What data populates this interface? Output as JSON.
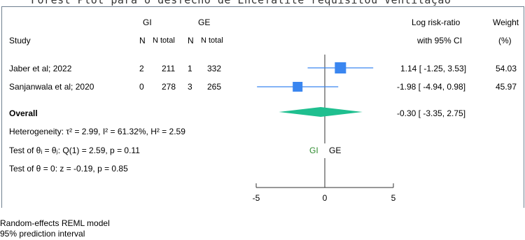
{
  "caption": "Forest Plot para o desfecho de Encefalite requisitou Ventilação",
  "header": {
    "study": "Study",
    "group1": "GI",
    "group2": "GE",
    "n1": "N",
    "ntotal1": "N total",
    "n2": "N",
    "ntotal2": "N total",
    "effect_line1": "Log risk-ratio",
    "effect_line2": "with 95% CI",
    "weight_line1": "Weight",
    "weight_line2": "(%)"
  },
  "studies": [
    {
      "name": "Jaber et al; 2022",
      "n1": "2",
      "ntot1": "211",
      "n2": "1",
      "ntot2": "332",
      "ci_text": "1.14 [ -1.25,  3.53]",
      "weight": "54.03"
    },
    {
      "name": "Sanjanwala et al; 2020",
      "n1": "0",
      "ntot1": "278",
      "n2": "3",
      "ntot2": "265",
      "ci_text": "-1.98 [ -4.94,  0.98]",
      "weight": "45.97"
    }
  ],
  "overall": {
    "label": "Overall",
    "ci_text": "-0.30 [ -3.35,  2.75]"
  },
  "stats": {
    "heterogeneity": "Heterogeneity: τ² = 2.99, I² = 61.32%, H² = 2.59",
    "theta_test": "Test of θᵢ = θⱼ: Q(1) = 2.59, p = 0.11",
    "zero_test": "Test of θ = 0: z = -0.19, p = 0.85"
  },
  "footer": {
    "model": "Random-effects REML model",
    "pi": "95% prediction interval"
  },
  "favors": {
    "left": "GI",
    "right": "GE"
  },
  "colors": {
    "study": "#3a86f0",
    "overall": "#1fbf8f",
    "favor_left": "#2e8b2e",
    "frame": "#6f7f8f"
  },
  "chart_data": {
    "type": "forest",
    "xlabel": "",
    "xlim": [
      -5,
      5
    ],
    "xticks": [
      -5,
      0,
      5
    ],
    "studies": [
      {
        "name": "Jaber et al; 2022",
        "estimate": 1.14,
        "lower": -1.25,
        "upper": 3.53,
        "weight": 54.03
      },
      {
        "name": "Sanjanwala et al; 2020",
        "estimate": -1.98,
        "lower": -4.94,
        "upper": 0.98,
        "weight": 45.97
      }
    ],
    "overall": {
      "estimate": -0.3,
      "lower": -3.35,
      "upper": 2.75
    },
    "reference_line": 0
  }
}
